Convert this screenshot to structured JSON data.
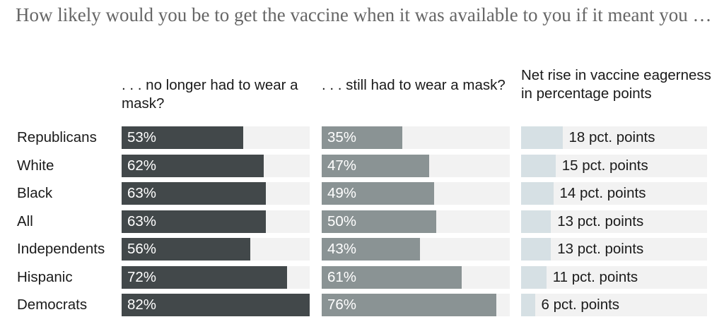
{
  "title": "How likely would you be to get the vaccine when it was available to you if it meant you …",
  "columns": {
    "no_mask": ". . . no longer had to wear a mask?",
    "mask": ". . . still had to wear a mask?",
    "net": "Net rise in vaccine eagerness in percentage points"
  },
  "colors": {
    "no_mask_bar": "#42484a",
    "mask_bar": "#8a9394",
    "net_bar": "#d6e0e4",
    "track": "#f2f2f2"
  },
  "chart_data": {
    "type": "bar",
    "categories": [
      "Republicans",
      "White",
      "Black",
      "All",
      "Independents",
      "Hispanic",
      "Democrats"
    ],
    "series": [
      {
        "name": ". . . no longer had to wear a mask?",
        "values": [
          53,
          62,
          63,
          63,
          56,
          72,
          82
        ]
      },
      {
        "name": ". . . still had to wear a mask?",
        "values": [
          35,
          47,
          49,
          50,
          43,
          61,
          76
        ]
      },
      {
        "name": "Net rise in vaccine eagerness in percentage points",
        "values": [
          18,
          15,
          14,
          13,
          13,
          11,
          6
        ]
      }
    ],
    "value_labels": {
      "no_mask": [
        "53%",
        "62%",
        "63%",
        "63%",
        "56%",
        "72%",
        "82%"
      ],
      "mask": [
        "35%",
        "47%",
        "49%",
        "50%",
        "43%",
        "61%",
        "76%"
      ],
      "net": [
        "18 pct. points",
        "15 pct. points",
        "14 pct. points",
        "13 pct. points",
        "13 pct. points",
        "11 pct. points",
        "6 pct. points"
      ]
    },
    "xlim_percent": [
      0,
      82
    ],
    "xlim_net": [
      0,
      100
    ]
  }
}
